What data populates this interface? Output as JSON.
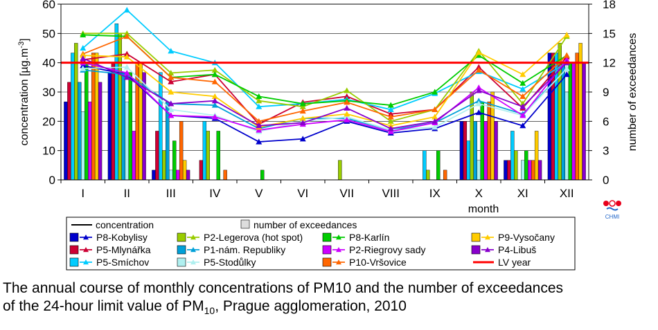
{
  "chart_data": {
    "type": "bar+line",
    "ylabel": "concentration [µg.m",
    "ylabel_sup": "-3",
    "ylabel_end": "]",
    "y2label": "number of exceedances",
    "xlabel": "month",
    "ylim": [
      0,
      60
    ],
    "y2lim": [
      0,
      18
    ],
    "yticks": [
      0,
      10,
      20,
      30,
      40,
      50,
      60
    ],
    "y2ticks": [
      0,
      3,
      6,
      9,
      12,
      15,
      18
    ],
    "categories": [
      "I",
      "II",
      "III",
      "IV",
      "V",
      "VI",
      "VII",
      "VIII",
      "IX",
      "X",
      "XI",
      "XII"
    ],
    "limit_value": 40,
    "limit_label": "LV year",
    "legend_concentration": "concentration",
    "legend_exceedances": "number of exceedances",
    "series": [
      {
        "name": "P8-Kobylisy",
        "color": "#0000cc",
        "concentration": [
          39,
          36,
          22,
          21,
          13,
          14,
          20,
          16,
          17.5,
          23,
          18.5,
          36
        ],
        "exceedances": [
          8,
          11,
          1,
          0,
          0,
          0,
          0,
          0,
          0,
          6,
          2,
          13
        ]
      },
      {
        "name": "P5-Mlynářka",
        "color": "#cc0033",
        "concentration": [
          41,
          43,
          33.5,
          36,
          19,
          26.5,
          28.5,
          22.5,
          24,
          38.5,
          24.5,
          42
        ],
        "exceedances": [
          10,
          12,
          5,
          2,
          0,
          0,
          0,
          0,
          0,
          6,
          2,
          13
        ]
      },
      {
        "name": "P5-Smíchov",
        "color": "#00ccff",
        "concentration": [
          45,
          58,
          44,
          40,
          25,
          26,
          27.5,
          24,
          29.5,
          37,
          31,
          40
        ],
        "exceedances": [
          13,
          16,
          11,
          6,
          0,
          0,
          0,
          0,
          3,
          4,
          5,
          13
        ]
      },
      {
        "name": "P2-Legerova (hot spot)",
        "color": "#99cc00",
        "concentration": [
          50,
          50,
          36.5,
          37.5,
          27,
          25,
          30.5,
          20,
          24,
          44,
          26,
          49
        ],
        "exceedances": [
          14,
          15,
          3,
          5,
          0,
          0,
          2,
          0,
          1,
          9,
          3,
          14
        ]
      },
      {
        "name": "P1-nám. Republiky",
        "color": "#00a0d8",
        "concentration": [
          37.5,
          36,
          26,
          25.5,
          17.5,
          21,
          21,
          17,
          19.5,
          27,
          22.5,
          38
        ],
        "exceedances": [
          10,
          11,
          8,
          0,
          0,
          0,
          0,
          0,
          0,
          6,
          0,
          12
        ]
      },
      {
        "name": "P5-Stodůlky",
        "color": "#b0f0f0",
        "concentration": [
          38,
          38.5,
          24,
          22,
          16.5,
          20,
          21.5,
          17,
          18,
          26,
          22,
          38
        ],
        "exceedances": [
          7,
          8,
          1,
          0,
          0,
          0,
          0,
          0,
          0,
          2,
          2,
          9
        ]
      },
      {
        "name": "P8-Karlín",
        "color": "#00cc00",
        "concentration": [
          49.5,
          49,
          35,
          36,
          28.5,
          26,
          27,
          25.5,
          30,
          42.5,
          33,
          42.5
        ],
        "exceedances": [
          12,
          11,
          4,
          5,
          1,
          0,
          0,
          0,
          3,
          8,
          3,
          12
        ]
      },
      {
        "name": "P2-Riegrovy sady",
        "color": "#cc00ff",
        "concentration": [
          40,
          36.5,
          22,
          21.5,
          17,
          19,
          20.5,
          16.5,
          19.5,
          31.5,
          22,
          41
        ],
        "exceedances": [
          8,
          5,
          1,
          0,
          0,
          0,
          0,
          0,
          0,
          6,
          2,
          12
        ]
      },
      {
        "name": "P10-Vršovice",
        "color": "#ff6600",
        "concentration": [
          43,
          49,
          35,
          33.5,
          20,
          23.5,
          26.5,
          21.5,
          24,
          37.5,
          28.5,
          42.5
        ],
        "exceedances": [
          13,
          12,
          6,
          1,
          0,
          0,
          0,
          0,
          1,
          8,
          2,
          13
        ]
      },
      {
        "name": "P9-Vysočany",
        "color": "#ffcc00",
        "concentration": [
          42.5,
          42,
          30,
          28.5,
          18,
          21,
          22.5,
          18.5,
          21.5,
          43.5,
          36,
          49.5
        ],
        "exceedances": [
          13,
          12,
          2,
          0,
          0,
          0,
          0,
          0,
          0,
          9,
          5,
          14
        ]
      },
      {
        "name": "P4-Libuš",
        "color": "#8800cc",
        "concentration": [
          41.5,
          35,
          26,
          27,
          18.5,
          19.5,
          24.5,
          17.5,
          20,
          30.5,
          25,
          40
        ],
        "exceedances": [
          10,
          11,
          1,
          0,
          0,
          0,
          0,
          0,
          0,
          6,
          2,
          12
        ]
      }
    ]
  },
  "logo": {
    "text": "CHMI"
  },
  "caption": {
    "line1": "The annual course of monthly concentrations of PM10 and the number of exceedances",
    "line2_pre": "of the 24-hour limit value of PM",
    "line2_sub": "10",
    "line2_post": ", Prague agglomeration, 2010"
  }
}
